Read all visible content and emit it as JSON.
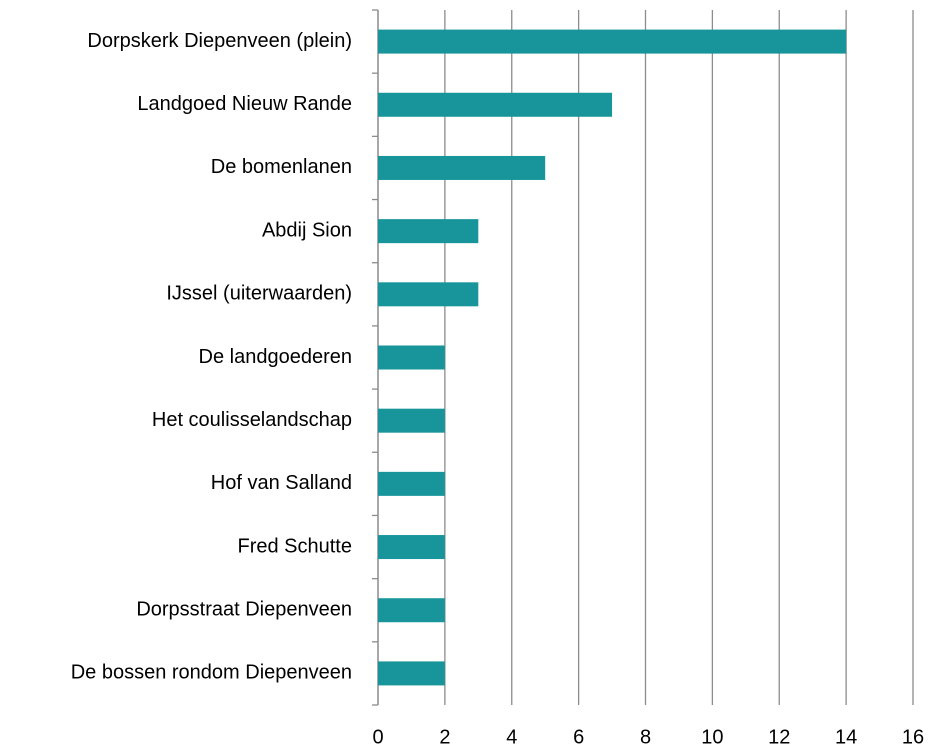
{
  "chart_data": {
    "type": "bar",
    "orientation": "horizontal",
    "categories": [
      "Dorpskerk Diepenveen (plein)",
      "Landgoed Nieuw Rande",
      "De bomenlanen",
      "Abdij Sion",
      "IJssel (uiterwaarden)",
      "De landgoederen",
      "Het coulisselandschap",
      "Hof van Salland",
      "Fred Schutte",
      "Dorpsstraat Diepenveen",
      "De bossen rondom Diepenveen"
    ],
    "values": [
      14,
      7,
      5,
      3,
      3,
      2,
      2,
      2,
      2,
      2,
      2
    ],
    "color": "#17959a",
    "xlim": [
      0,
      16
    ],
    "xticks": [
      0,
      2,
      4,
      6,
      8,
      10,
      12,
      14,
      16
    ],
    "grid": true
  }
}
